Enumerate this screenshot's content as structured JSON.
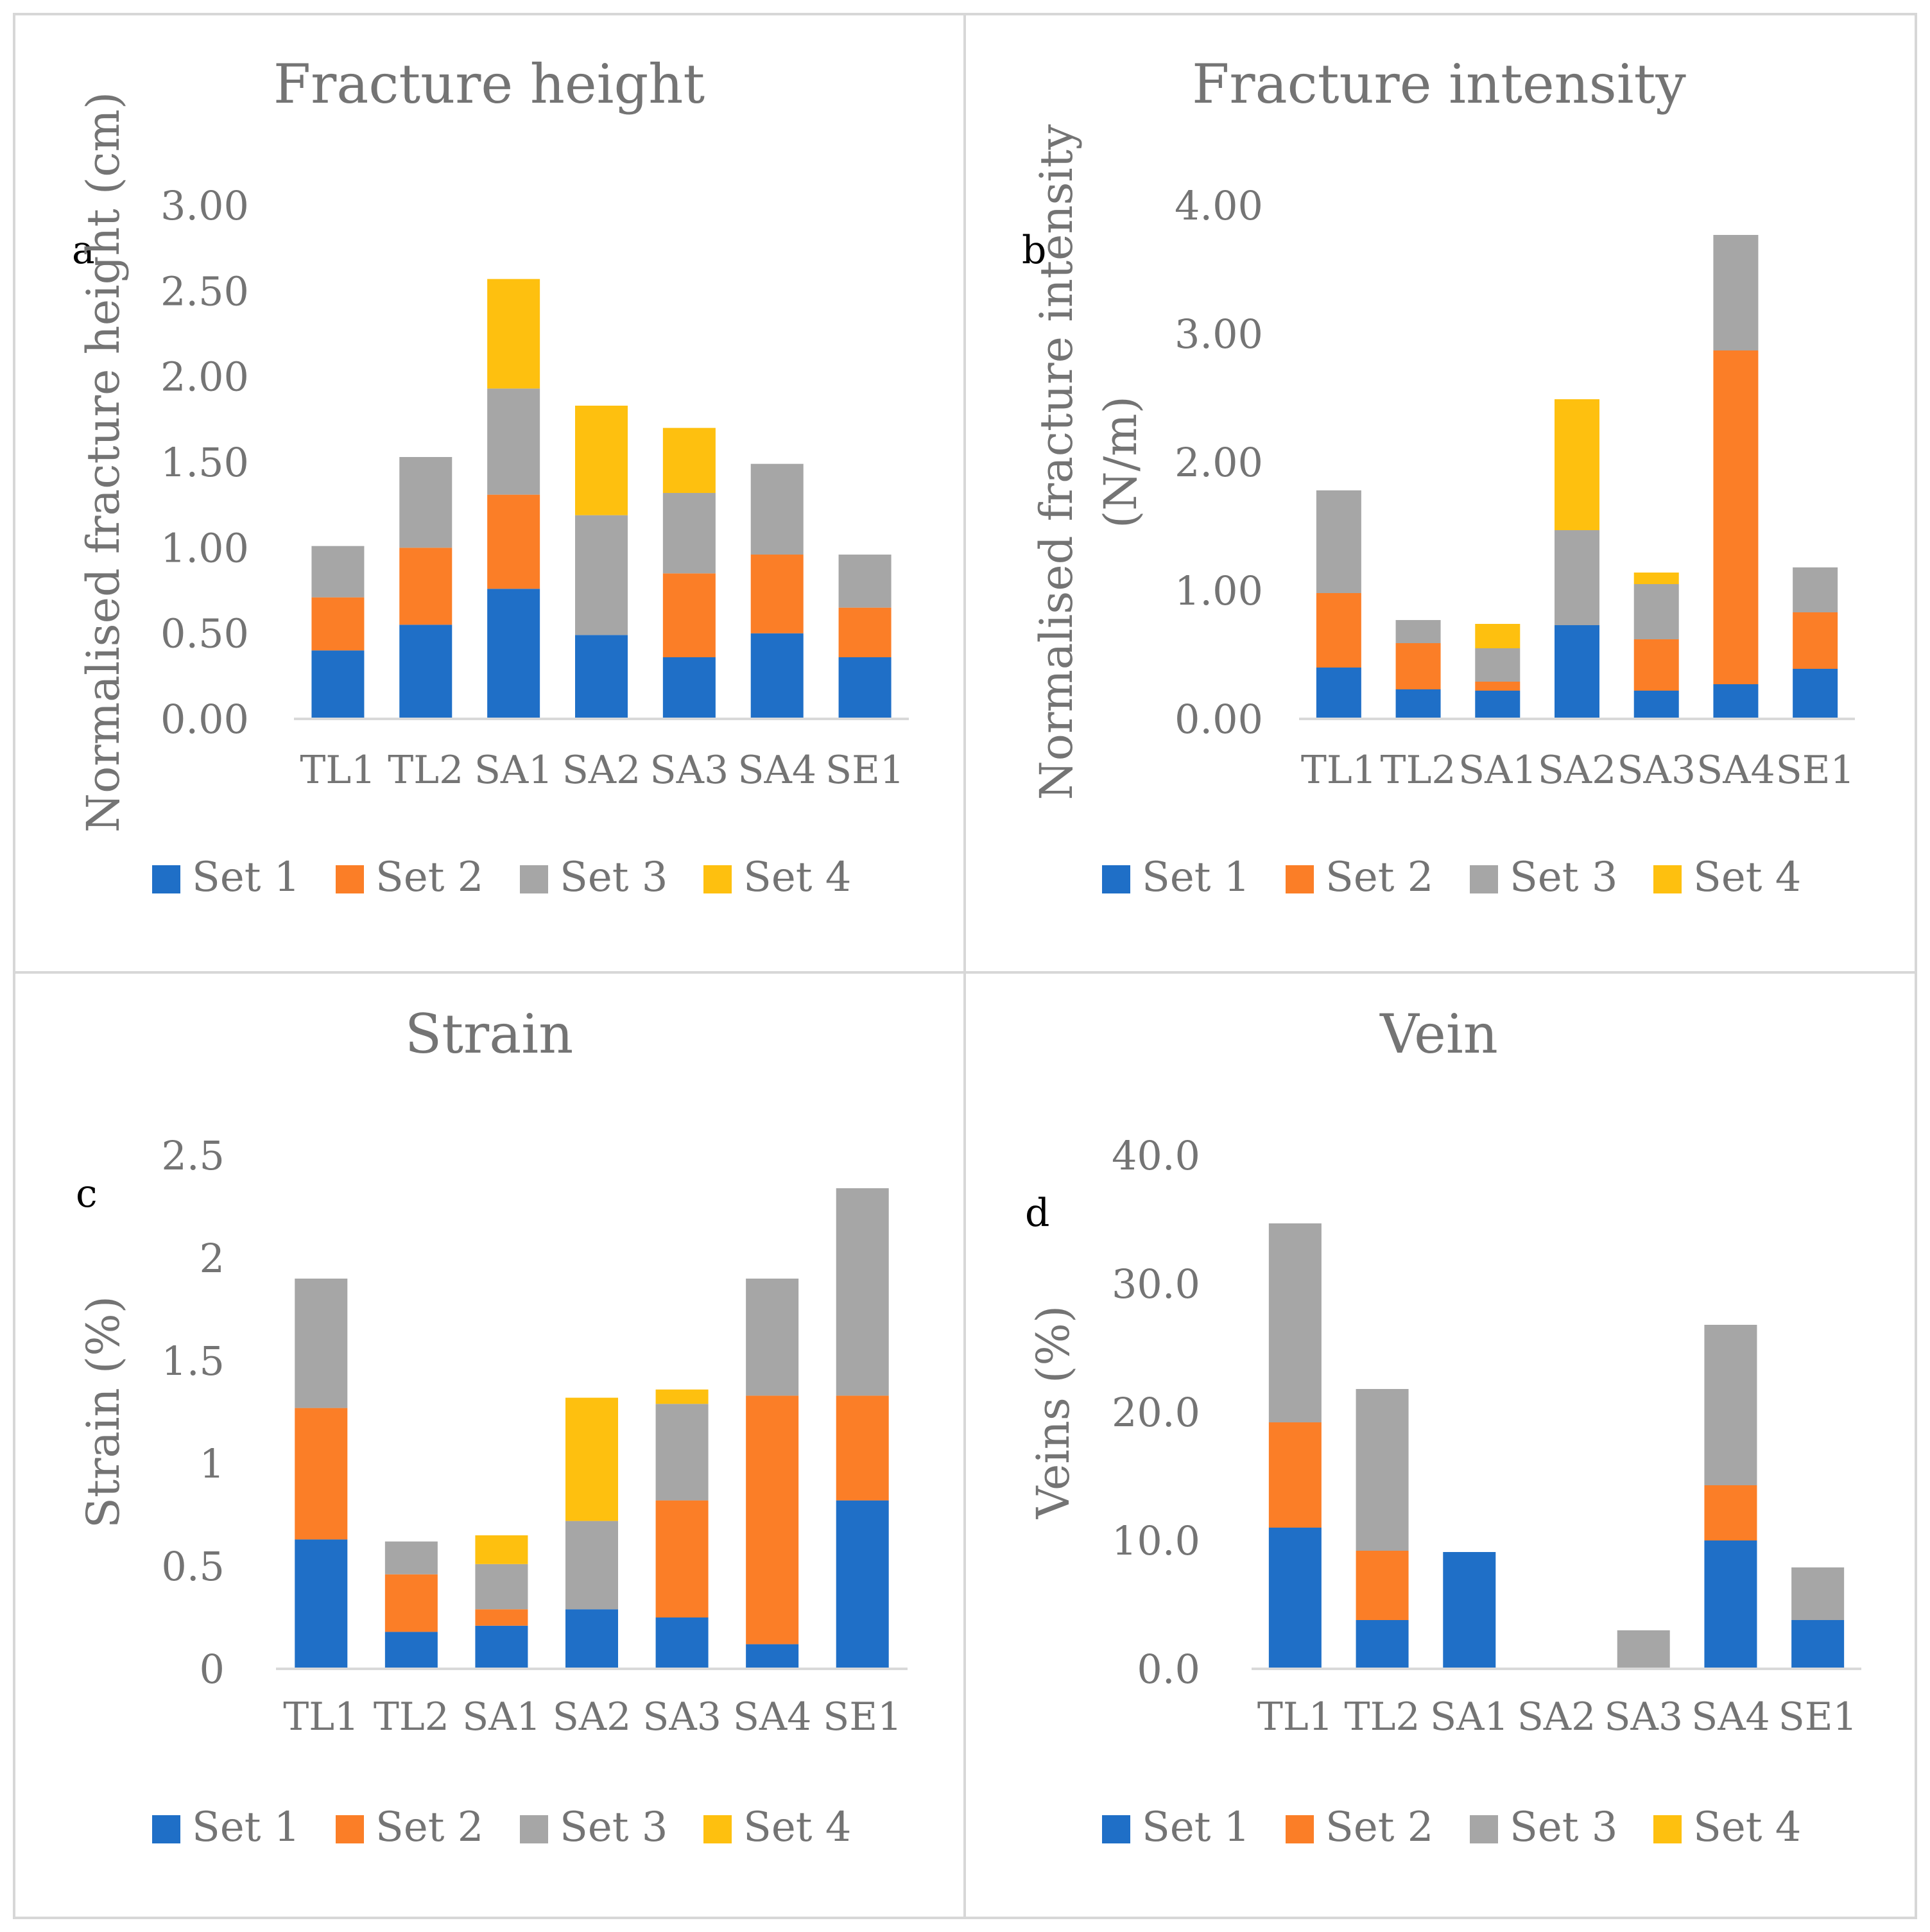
{
  "colors": {
    "set1": "#1f6fc7",
    "set2": "#fb7e27",
    "set3": "#a6a6a6",
    "set4": "#fec00f",
    "text": "#747474",
    "axis": "#d9d9d9",
    "border": "#d7d7d7",
    "letter": "#000000"
  },
  "chart_data": [
    {
      "type": "bar",
      "stacked": true,
      "panel_letter": "a",
      "title": "Fracture height",
      "xlabel": "",
      "ylabel": "Normalised fracture height (cm)",
      "ylim": [
        0,
        3
      ],
      "yticks": [
        "0.00",
        "0.50",
        "1.00",
        "1.50",
        "2.00",
        "2.50",
        "3.00"
      ],
      "categories": [
        "TL1",
        "TL2",
        "SA1",
        "SA2",
        "SA3",
        "SA4",
        "SE1"
      ],
      "series": [
        {
          "name": "Set 1",
          "values": [
            0.4,
            0.55,
            0.76,
            0.49,
            0.36,
            0.5,
            0.36
          ]
        },
        {
          "name": "Set 2",
          "values": [
            0.31,
            0.45,
            0.55,
            0.0,
            0.49,
            0.46,
            0.29
          ]
        },
        {
          "name": "Set 3",
          "values": [
            0.3,
            0.53,
            0.62,
            0.7,
            0.47,
            0.53,
            0.31
          ]
        },
        {
          "name": "Set 4",
          "values": [
            0.0,
            0.0,
            0.64,
            0.64,
            0.38,
            0.0,
            0.0
          ]
        }
      ],
      "legend": "bottom"
    },
    {
      "type": "bar",
      "stacked": true,
      "panel_letter": "b",
      "title": "Fracture intensity",
      "xlabel": "",
      "ylabel": "Normalised fracture intensity (N/m)",
      "ylabel_lines": [
        "Normalised fracture intensity",
        "(N/m)"
      ],
      "ylim": [
        0,
        4
      ],
      "yticks": [
        "0.00",
        "1.00",
        "2.00",
        "3.00",
        "4.00"
      ],
      "categories": [
        "TL1",
        "TL2",
        "SA1",
        "SA2",
        "SA3",
        "SA4",
        "SE1"
      ],
      "series": [
        {
          "name": "Set 1",
          "values": [
            0.4,
            0.23,
            0.22,
            0.73,
            0.22,
            0.27,
            0.39
          ]
        },
        {
          "name": "Set 2",
          "values": [
            0.58,
            0.36,
            0.07,
            0.0,
            0.4,
            2.6,
            0.44
          ]
        },
        {
          "name": "Set 3",
          "values": [
            0.8,
            0.18,
            0.26,
            0.74,
            0.43,
            0.9,
            0.35
          ]
        },
        {
          "name": "Set 4",
          "values": [
            0.0,
            0.0,
            0.19,
            1.02,
            0.09,
            0.0,
            0.0
          ]
        }
      ],
      "legend": "bottom"
    },
    {
      "type": "bar",
      "stacked": true,
      "panel_letter": "c",
      "title": "Strain",
      "xlabel": "",
      "ylabel": "Strain (%)",
      "ylim": [
        0,
        2.5
      ],
      "yticks": [
        "0",
        "0.5",
        "1",
        "1.5",
        "2",
        "2.5"
      ],
      "categories": [
        "TL1",
        "TL2",
        "SA1",
        "SA2",
        "SA3",
        "SA4",
        "SE1"
      ],
      "series": [
        {
          "name": "Set 1",
          "values": [
            0.63,
            0.18,
            0.21,
            0.29,
            0.25,
            0.12,
            0.82
          ]
        },
        {
          "name": "Set 2",
          "values": [
            0.64,
            0.28,
            0.08,
            0.0,
            0.57,
            1.21,
            0.51
          ]
        },
        {
          "name": "Set 3",
          "values": [
            0.63,
            0.16,
            0.22,
            0.43,
            0.47,
            0.57,
            1.01
          ]
        },
        {
          "name": "Set 4",
          "values": [
            0.0,
            0.0,
            0.14,
            0.6,
            0.07,
            0.0,
            0.0
          ]
        }
      ],
      "legend": "bottom"
    },
    {
      "type": "bar",
      "stacked": true,
      "panel_letter": "d",
      "title": "Vein",
      "xlabel": "",
      "ylabel": "Veins (%)",
      "ylim": [
        0,
        40
      ],
      "yticks": [
        "0.0",
        "10.0",
        "20.0",
        "30.0",
        "40.0"
      ],
      "categories": [
        "TL1",
        "TL2",
        "SA1",
        "SA2",
        "SA3",
        "SA4",
        "SE1"
      ],
      "series": [
        {
          "name": "Set 1",
          "values": [
            11.0,
            3.8,
            9.1,
            0.0,
            0.0,
            10.0,
            3.8
          ]
        },
        {
          "name": "Set 2",
          "values": [
            8.2,
            5.4,
            0.0,
            0.0,
            0.0,
            4.3,
            0.0
          ]
        },
        {
          "name": "Set 3",
          "values": [
            15.5,
            12.6,
            0.0,
            0.0,
            3.0,
            12.5,
            4.1
          ]
        },
        {
          "name": "Set 4",
          "values": [
            0.0,
            0.0,
            0.0,
            0.0,
            0.0,
            0.0,
            0.0
          ]
        }
      ],
      "legend": "bottom"
    }
  ]
}
